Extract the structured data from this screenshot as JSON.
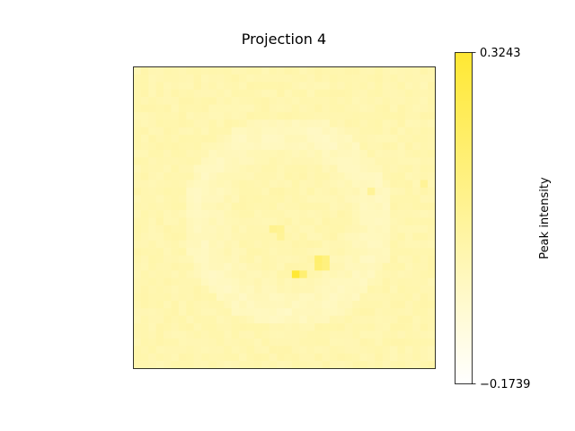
{
  "chart_data": {
    "type": "heatmap",
    "title": "Projection 4",
    "colorbar": {
      "label": "Peak intensity",
      "min": -0.1739,
      "max": 0.3243,
      "min_label": "−0.1739",
      "max_label": "0.3243",
      "colormap": [
        "#ffffff",
        "#ffe833"
      ]
    },
    "grid": {
      "rows": 40,
      "cols": 40,
      "xticks": "none",
      "yticks": "none",
      "background_value": 0.02,
      "ring": {
        "center_row": 20,
        "center_col": 20,
        "radius": 12,
        "value": -0.02
      },
      "hot_cells": [
        {
          "row": 27,
          "col": 21,
          "value": 0.32
        },
        {
          "row": 27,
          "col": 22,
          "value": 0.17
        },
        {
          "row": 25,
          "col": 24,
          "value": 0.18
        },
        {
          "row": 26,
          "col": 24,
          "value": 0.17
        },
        {
          "row": 25,
          "col": 25,
          "value": 0.14
        },
        {
          "row": 26,
          "col": 25,
          "value": 0.14
        },
        {
          "row": 21,
          "col": 18,
          "value": 0.1
        },
        {
          "row": 21,
          "col": 19,
          "value": 0.09
        },
        {
          "row": 22,
          "col": 19,
          "value": 0.08
        },
        {
          "row": 16,
          "col": 31,
          "value": 0.08
        },
        {
          "row": 15,
          "col": 38,
          "value": 0.08
        }
      ]
    }
  }
}
